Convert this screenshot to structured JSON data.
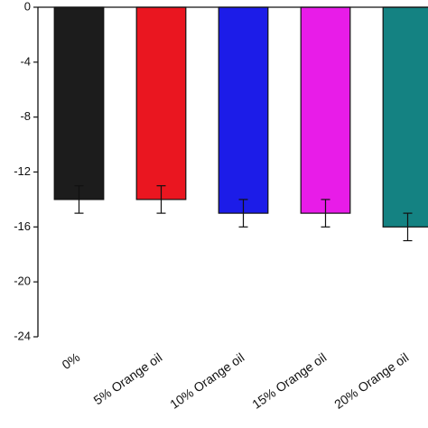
{
  "chart_data": {
    "type": "bar",
    "categories": [
      "0%",
      "5% Orange oil",
      "10% Orange oil",
      "15% Orange oil",
      "20% Orange oil"
    ],
    "values": [
      -14,
      -14,
      -15,
      -15,
      -16
    ],
    "errors": [
      1,
      1,
      1,
      1,
      1
    ],
    "colors": [
      "#1c1c1c",
      "#ea1620",
      "#1c1ce8",
      "#e81ce8",
      "#148282"
    ],
    "ylim": [
      -24,
      0
    ],
    "yticks": [
      0,
      -4,
      -8,
      -12,
      -16,
      -20,
      -24
    ]
  }
}
